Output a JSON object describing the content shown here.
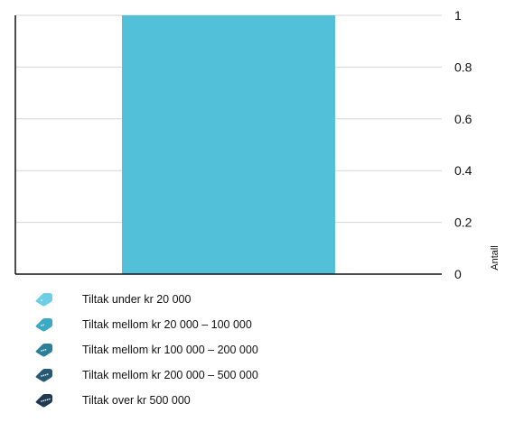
{
  "chart_data": {
    "type": "bar",
    "categories": [
      ""
    ],
    "values": [
      1
    ],
    "title": "",
    "xlabel": "",
    "ylabel": "Antall",
    "ylim": [
      0,
      1
    ],
    "yticks": [
      "0",
      "0.2",
      "0.4",
      "0.6",
      "0.8",
      "1"
    ],
    "grid": true,
    "bar_color": "#52c0d8",
    "legend_placement": "bottom-left"
  },
  "legend": {
    "items": [
      {
        "label": "Tiltak under kr 20 000",
        "color": "#6ccfe6",
        "icon": "money-tag-icon"
      },
      {
        "label": "Tiltak mellom kr 20 000 – 100 000",
        "color": "#3aa9c3",
        "icon": "money-tag-icon"
      },
      {
        "label": "Tiltak mellom kr 100 000 – 200 000",
        "color": "#2a7f9b",
        "icon": "money-tag-icon"
      },
      {
        "label": "Tiltak mellom kr 200 000 – 500 000",
        "color": "#265a74",
        "icon": "money-tag-icon"
      },
      {
        "label": "Tiltak over kr 500 000",
        "color": "#1f3b53",
        "icon": "money-tag-icon"
      }
    ]
  }
}
